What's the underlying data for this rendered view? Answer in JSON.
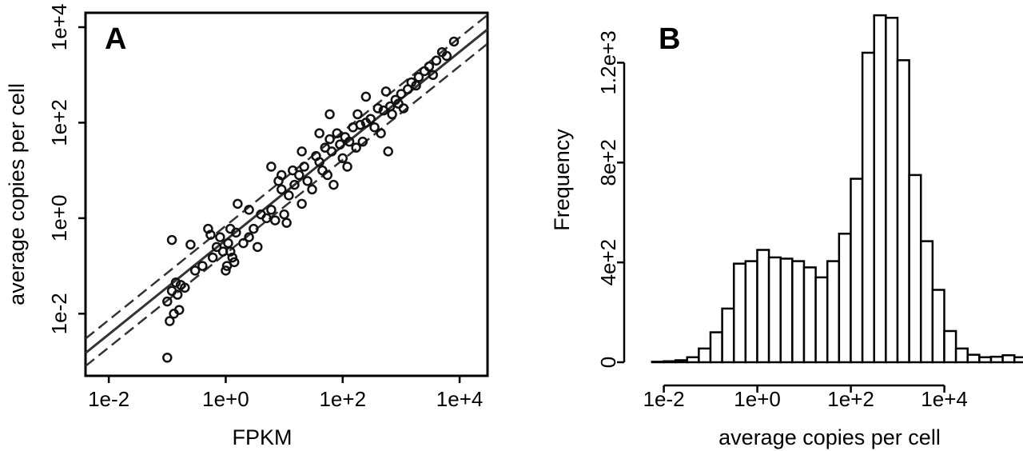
{
  "chart_data": [
    {
      "panel": "A",
      "type": "scatter",
      "xlabel": "FPKM",
      "ylabel": "average copies per cell",
      "xscale": "log",
      "yscale": "log",
      "xlim": [
        0.004,
        30000
      ],
      "ylim": [
        0.0005,
        20000
      ],
      "x_ticks": [
        "1e-2",
        "1e+0",
        "1e+2",
        "1e+4"
      ],
      "y_ticks": [
        "1e-2",
        "1e+0",
        "1e+2",
        "1e+4"
      ],
      "grid": false,
      "points": [
        [
          0.1,
          0.0012
        ],
        [
          0.11,
          0.007
        ],
        [
          0.1,
          0.018
        ],
        [
          0.12,
          0.03
        ],
        [
          0.13,
          0.01
        ],
        [
          0.15,
          0.025
        ],
        [
          0.17,
          0.04
        ],
        [
          0.14,
          0.045
        ],
        [
          0.16,
          0.012
        ],
        [
          0.12,
          0.35
        ],
        [
          0.25,
          0.28
        ],
        [
          0.2,
          0.035
        ],
        [
          0.4,
          0.1
        ],
        [
          0.5,
          0.6
        ],
        [
          0.55,
          0.45
        ],
        [
          0.7,
          0.25
        ],
        [
          0.8,
          0.4
        ],
        [
          0.6,
          0.15
        ],
        [
          0.9,
          0.2
        ],
        [
          1.0,
          0.08
        ],
        [
          1.05,
          0.1
        ],
        [
          1.1,
          0.3
        ],
        [
          1.2,
          0.2
        ],
        [
          1.3,
          0.15
        ],
        [
          1.4,
          0.12
        ],
        [
          1.5,
          0.5
        ],
        [
          1.6,
          2.0
        ],
        [
          2.0,
          0.3
        ],
        [
          2.5,
          1.5
        ],
        [
          3.0,
          0.6
        ],
        [
          3.5,
          0.25
        ],
        [
          4.0,
          1.2
        ],
        [
          5.0,
          1.0
        ],
        [
          6.0,
          1.5
        ],
        [
          7.0,
          0.9
        ],
        [
          8.0,
          6.0
        ],
        [
          9.0,
          4.0
        ],
        [
          10.0,
          1.2
        ],
        [
          11.0,
          0.8
        ],
        [
          12.0,
          3.0
        ],
        [
          14.0,
          10.0
        ],
        [
          15.0,
          5.0
        ],
        [
          18.0,
          8.0
        ],
        [
          20.0,
          2.0
        ],
        [
          22.0,
          12.0
        ],
        [
          25.0,
          6.0
        ],
        [
          30.0,
          4.0
        ],
        [
          35.0,
          20.0
        ],
        [
          40.0,
          15.0
        ],
        [
          45.0,
          10.0
        ],
        [
          50.0,
          30.0
        ],
        [
          55.0,
          8.0
        ],
        [
          60.0,
          45.0
        ],
        [
          65.0,
          25.0
        ],
        [
          70.0,
          5.0
        ],
        [
          80.0,
          60.0
        ],
        [
          90.0,
          35.0
        ],
        [
          100.0,
          18.0
        ],
        [
          110.0,
          50.0
        ],
        [
          120.0,
          12.0
        ],
        [
          130.0,
          40.0
        ],
        [
          150.0,
          80.0
        ],
        [
          170.0,
          30.0
        ],
        [
          180.0,
          150.0
        ],
        [
          200.0,
          90.0
        ],
        [
          220.0,
          40.0
        ],
        [
          250.0,
          100.0
        ],
        [
          300.0,
          120.0
        ],
        [
          350.0,
          80.0
        ],
        [
          400.0,
          200.0
        ],
        [
          450.0,
          60.0
        ],
        [
          500.0,
          180.0
        ],
        [
          550.0,
          450.0
        ],
        [
          600.0,
          25.0
        ],
        [
          650.0,
          220.0
        ],
        [
          700.0,
          150.0
        ],
        [
          800.0,
          300.0
        ],
        [
          900.0,
          250.0
        ],
        [
          1000.0,
          400.0
        ],
        [
          1100.0,
          200.0
        ],
        [
          1300.0,
          500.0
        ],
        [
          1500.0,
          700.0
        ],
        [
          1800.0,
          600.0
        ],
        [
          2000.0,
          900.0
        ],
        [
          2500.0,
          1200.0
        ],
        [
          3000.0,
          1500.0
        ],
        [
          3500.0,
          1000.0
        ],
        [
          4000.0,
          2000.0
        ],
        [
          5000.0,
          3000.0
        ],
        [
          6000.0,
          2500.0
        ],
        [
          8000.0,
          5000.0
        ],
        [
          250.0,
          350.0
        ],
        [
          40.0,
          60.0
        ],
        [
          6.0,
          12.0
        ],
        [
          0.3,
          0.08
        ],
        [
          1.2,
          0.6
        ],
        [
          2.5,
          0.4
        ],
        [
          9.0,
          8.0
        ],
        [
          20.0,
          25.0
        ],
        [
          60.0,
          150.0
        ]
      ],
      "fit_line": {
        "style": "solid",
        "x": [
          0.004,
          30000
        ],
        "y": [
          0.0015,
          9000
        ]
      },
      "band_upper": {
        "style": "dashed",
        "x": [
          0.004,
          30000
        ],
        "y": [
          0.003,
          18000
        ]
      },
      "band_lower": {
        "style": "dashed",
        "x": [
          0.004,
          30000
        ],
        "y": [
          0.0008,
          4500
        ]
      },
      "panel_label": "A"
    },
    {
      "panel": "B",
      "type": "bar",
      "subtype": "histogram",
      "xlabel": "average copies per cell",
      "ylabel": "Frequency",
      "xscale": "log",
      "xlim": [
        0.003,
        300000
      ],
      "ylim": [
        0,
        1400
      ],
      "x_ticks": [
        "1e-2",
        "1e+0",
        "1e+2",
        "1e+4"
      ],
      "y_ticks": [
        "0",
        "4e+2",
        "8e+2",
        "1.2e+3"
      ],
      "y_tick_values": [
        0,
        400,
        800,
        1200
      ],
      "bin_start": 0.0056,
      "bin_width_log10": 0.25,
      "values": [
        2,
        4,
        8,
        20,
        55,
        120,
        215,
        395,
        405,
        450,
        420,
        415,
        405,
        380,
        340,
        405,
        515,
        735,
        1240,
        1390,
        1380,
        1210,
        750,
        485,
        290,
        125,
        55,
        30,
        20,
        22,
        28,
        20,
        15,
        10,
        5
      ],
      "grid": false,
      "panel_label": "B"
    }
  ]
}
